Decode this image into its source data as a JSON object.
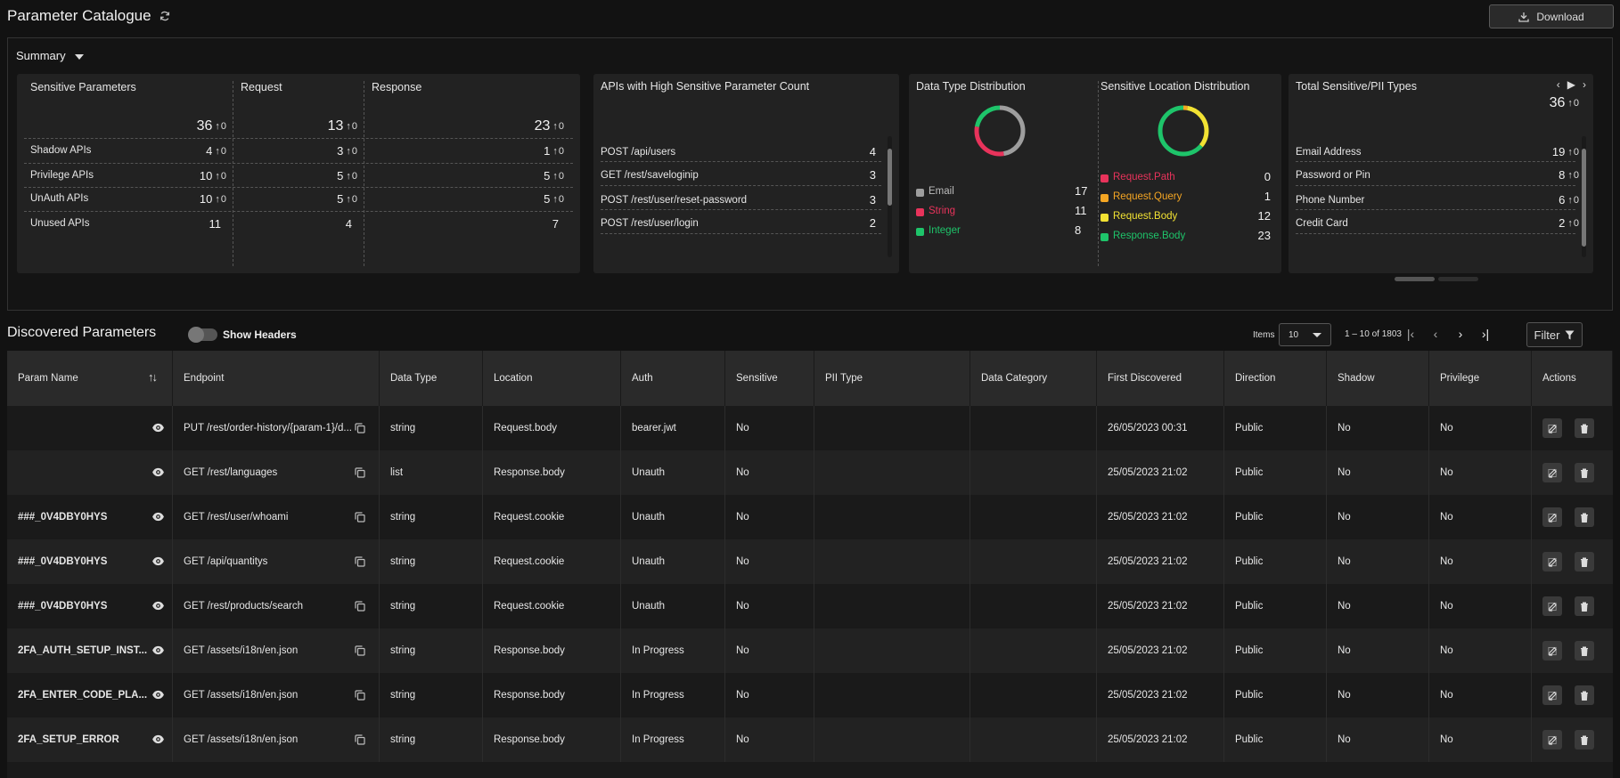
{
  "header": {
    "title": "Parameter Catalogue",
    "download_label": "Download"
  },
  "summary": {
    "toggle_label": "Summary",
    "sensitive": {
      "col_titles": [
        "Sensitive Parameters",
        "Request",
        "Response"
      ],
      "totals": [
        {
          "v": "36",
          "d": "0"
        },
        {
          "v": "13",
          "d": "0"
        },
        {
          "v": "23",
          "d": "0"
        }
      ],
      "rows": [
        {
          "label": "Shadow APIs",
          "vals": [
            {
              "v": "4",
              "d": "0"
            },
            {
              "v": "3",
              "d": "0"
            },
            {
              "v": "1",
              "d": "0"
            }
          ]
        },
        {
          "label": "Privilege APIs",
          "vals": [
            {
              "v": "10",
              "d": "0"
            },
            {
              "v": "5",
              "d": "0"
            },
            {
              "v": "5",
              "d": "0"
            }
          ]
        },
        {
          "label": "UnAuth APIs",
          "vals": [
            {
              "v": "10",
              "d": "0"
            },
            {
              "v": "5",
              "d": "0"
            },
            {
              "v": "5",
              "d": "0"
            }
          ]
        },
        {
          "label": "Unused APIs",
          "vals": [
            {
              "v": "11",
              "d": ""
            },
            {
              "v": "4",
              "d": ""
            },
            {
              "v": "7",
              "d": ""
            }
          ]
        }
      ]
    },
    "apis": {
      "title": "APIs with High Sensitive Parameter Count",
      "rows": [
        {
          "label": "POST /api/users",
          "value": "4"
        },
        {
          "label": "GET /rest/saveloginip",
          "value": "3"
        },
        {
          "label": "POST /rest/user/reset-password",
          "value": "3"
        },
        {
          "label": "POST /rest/user/login",
          "value": "2"
        }
      ]
    },
    "data_type": {
      "title": "Data Type Distribution",
      "items": [
        {
          "label": "Email",
          "value": "17",
          "color": "#9e9e9e"
        },
        {
          "label": "String",
          "value": "11",
          "color": "#e8335b"
        },
        {
          "label": "Integer",
          "value": "8",
          "color": "#1ec46a"
        }
      ]
    },
    "location": {
      "title": "Sensitive Location Distribution",
      "items": [
        {
          "label": "Request.Path",
          "value": "0",
          "color": "#e8335b"
        },
        {
          "label": "Request.Query",
          "value": "1",
          "color": "#f5a623"
        },
        {
          "label": "Request.Body",
          "value": "12",
          "color": "#f2e233"
        },
        {
          "label": "Response.Body",
          "value": "23",
          "color": "#1ec46a"
        }
      ]
    },
    "pii": {
      "title": "Total Sensitive/PII Types",
      "total": {
        "v": "36",
        "d": "0"
      },
      "rows": [
        {
          "label": "Email Address",
          "v": "19",
          "d": "0"
        },
        {
          "label": "Password or Pin",
          "v": "8",
          "d": "0"
        },
        {
          "label": "Phone Number",
          "v": "6",
          "d": "0"
        },
        {
          "label": "Credit Card",
          "v": "2",
          "d": "0"
        }
      ]
    }
  },
  "discovered": {
    "title": "Discovered Parameters",
    "show_headers_label": "Show Headers",
    "items_label": "Items",
    "items_value": "10",
    "range_label": "1 – 10 of 1803",
    "filter_label": "Filter"
  },
  "table": {
    "columns": [
      "Param Name",
      "Endpoint",
      "Data Type",
      "Location",
      "Auth",
      "Sensitive",
      "PII Type",
      "Data Category",
      "First Discovered",
      "Direction",
      "Shadow",
      "Privilege",
      "Actions"
    ],
    "rows": [
      {
        "name": "",
        "endpoint": "PUT /rest/order-history/{param-1}/d...",
        "type": "string",
        "location": "Request.body",
        "auth": "bearer.jwt",
        "sensitive": "No",
        "pii": "",
        "category": "",
        "first": "26/05/2023 00:31",
        "direction": "Public",
        "shadow": "No",
        "privilege": "No"
      },
      {
        "name": "",
        "endpoint": "GET /rest/languages",
        "type": "list",
        "location": "Response.body",
        "auth": "Unauth",
        "sensitive": "No",
        "pii": "",
        "category": "",
        "first": "25/05/2023 21:02",
        "direction": "Public",
        "shadow": "No",
        "privilege": "No"
      },
      {
        "name": "###_0V4DBY0HYS",
        "endpoint": "GET /rest/user/whoami",
        "type": "string",
        "location": "Request.cookie",
        "auth": "Unauth",
        "sensitive": "No",
        "pii": "",
        "category": "",
        "first": "25/05/2023 21:02",
        "direction": "Public",
        "shadow": "No",
        "privilege": "No"
      },
      {
        "name": "###_0V4DBY0HYS",
        "endpoint": "GET /api/quantitys",
        "type": "string",
        "location": "Request.cookie",
        "auth": "Unauth",
        "sensitive": "No",
        "pii": "",
        "category": "",
        "first": "25/05/2023 21:02",
        "direction": "Public",
        "shadow": "No",
        "privilege": "No"
      },
      {
        "name": "###_0V4DBY0HYS",
        "endpoint": "GET /rest/products/search",
        "type": "string",
        "location": "Request.cookie",
        "auth": "Unauth",
        "sensitive": "No",
        "pii": "",
        "category": "",
        "first": "25/05/2023 21:02",
        "direction": "Public",
        "shadow": "No",
        "privilege": "No"
      },
      {
        "name": "2FA_AUTH_SETUP_INST...",
        "endpoint": "GET /assets/i18n/en.json",
        "type": "string",
        "location": "Response.body",
        "auth": "In Progress",
        "sensitive": "No",
        "pii": "",
        "category": "",
        "first": "25/05/2023 21:02",
        "direction": "Public",
        "shadow": "No",
        "privilege": "No"
      },
      {
        "name": "2FA_ENTER_CODE_PLA...",
        "endpoint": "GET /assets/i18n/en.json",
        "type": "string",
        "location": "Response.body",
        "auth": "In Progress",
        "sensitive": "No",
        "pii": "",
        "category": "",
        "first": "25/05/2023 21:02",
        "direction": "Public",
        "shadow": "No",
        "privilege": "No"
      },
      {
        "name": "2FA_SETUP_ERROR",
        "endpoint": "GET /assets/i18n/en.json",
        "type": "string",
        "location": "Response.body",
        "auth": "In Progress",
        "sensitive": "No",
        "pii": "",
        "category": "",
        "first": "25/05/2023 21:02",
        "direction": "Public",
        "shadow": "No",
        "privilege": "No"
      }
    ]
  }
}
